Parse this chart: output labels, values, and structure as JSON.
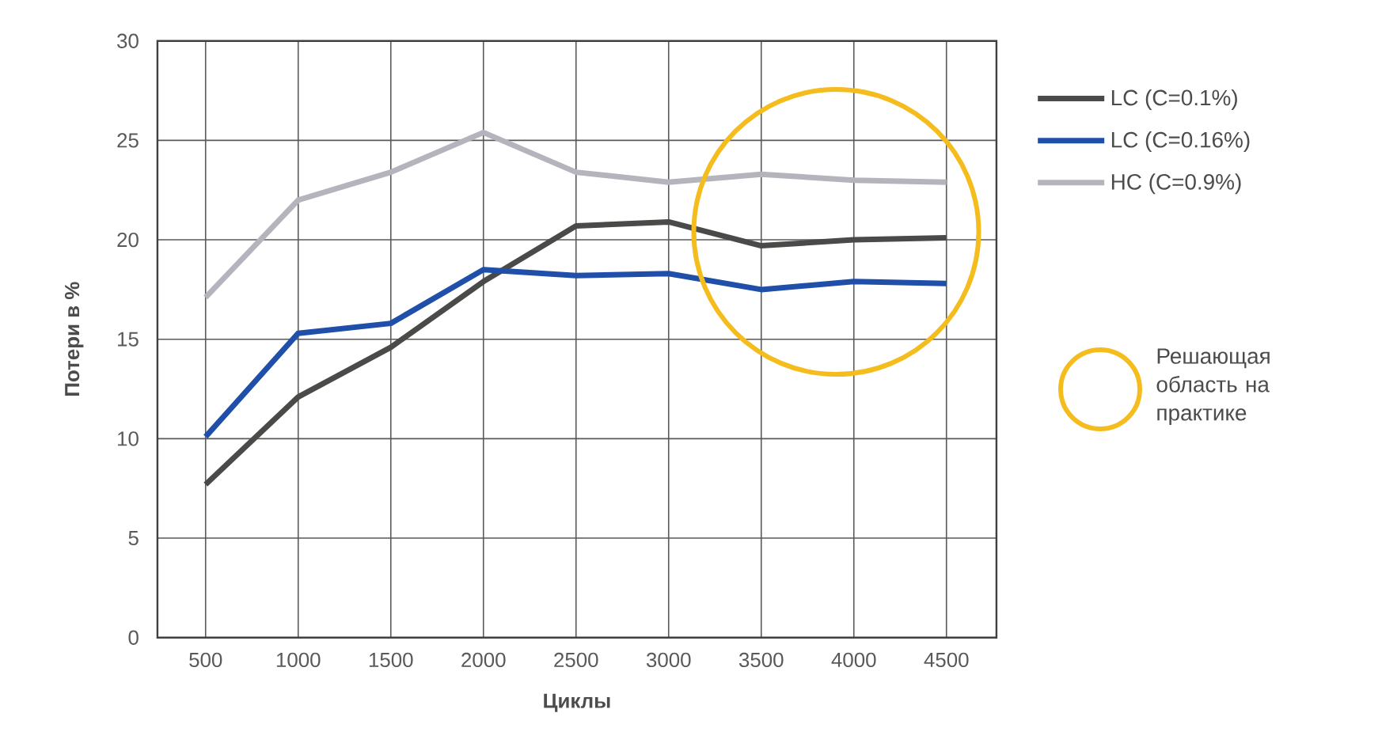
{
  "chart_data": {
    "type": "line",
    "xlabel": "Циклы",
    "ylabel": "Потери в %",
    "x": [
      500,
      1000,
      1500,
      2000,
      2500,
      3000,
      3500,
      4000,
      4500
    ],
    "series": [
      {
        "name": "LC (C=0.1%)",
        "color": "#4a4a48",
        "values": [
          7.7,
          12.1,
          14.6,
          17.9,
          20.7,
          20.9,
          19.7,
          20.0,
          20.1
        ]
      },
      {
        "name": "LC (C=0.16%)",
        "color": "#1f4fa8",
        "values": [
          10.1,
          15.3,
          15.8,
          18.5,
          18.2,
          18.3,
          17.5,
          17.9,
          17.8
        ]
      },
      {
        "name": "HC (C=0.9%)",
        "color": "#b4b4bc",
        "values": [
          17.1,
          22.0,
          23.4,
          25.4,
          23.4,
          22.9,
          23.3,
          23.0,
          22.9
        ]
      }
    ],
    "xlim": [
      240,
      4770
    ],
    "ylim": [
      0,
      30
    ],
    "xticks": [
      500,
      1000,
      1500,
      2000,
      2500,
      3000,
      3500,
      4000,
      4500
    ],
    "yticks": [
      0,
      5,
      10,
      15,
      20,
      25,
      30
    ],
    "grid": true,
    "legend": "right",
    "annotations": [
      "Решающая область на практике"
    ]
  }
}
